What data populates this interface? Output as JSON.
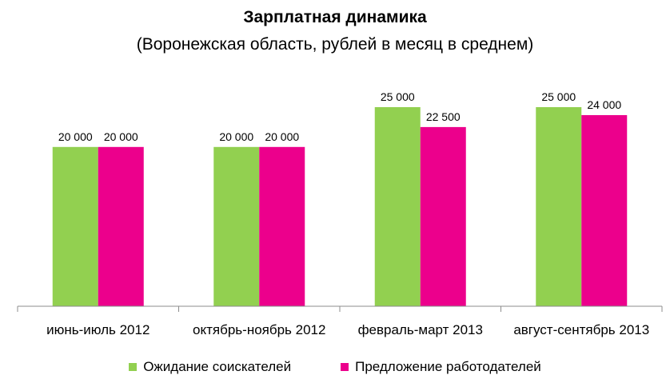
{
  "chart_data": {
    "type": "bar",
    "title": "Зарплатная динамика",
    "subtitle": "(Воронежская область, рублей в месяц в среднем)",
    "categories": [
      "июнь-июль 2012",
      "октябрь-ноябрь 2012",
      "февраль-март 2013",
      "август-сентябрь 2013"
    ],
    "series": [
      {
        "name": "Ожидание соискателей",
        "color": "#92D050",
        "values": [
          20000,
          20000,
          25000,
          25000
        ],
        "labels": [
          "20 000",
          "20 000",
          "25 000",
          "25 000"
        ]
      },
      {
        "name": "Предложение работодателей",
        "color": "#EC008C",
        "values": [
          20000,
          20000,
          22500,
          24000
        ],
        "labels": [
          "20 000",
          "20 000",
          "22 500",
          "24 000"
        ]
      }
    ],
    "ylim": [
      0,
      26000
    ],
    "grid": false,
    "legend_position": "bottom"
  }
}
